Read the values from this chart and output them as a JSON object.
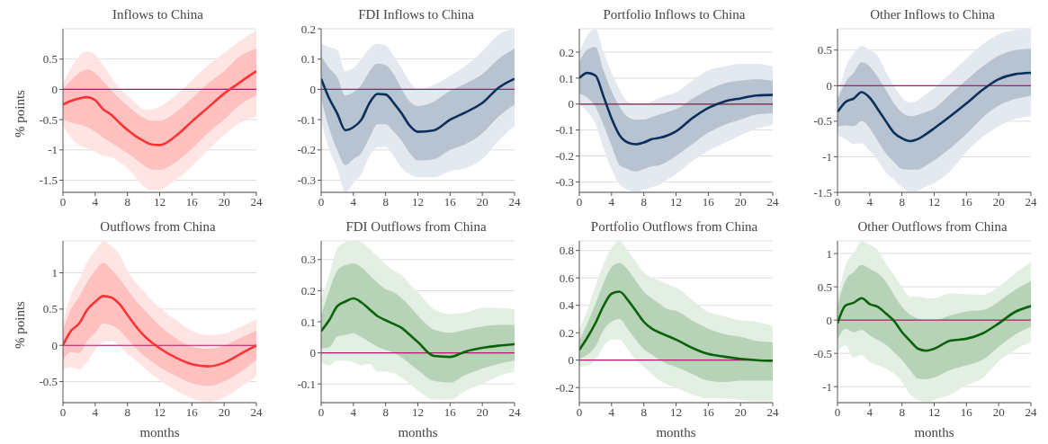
{
  "chart_data": [
    {
      "type": "line",
      "title": "Inflows to China",
      "ylabel": "% points",
      "x": [
        0,
        1,
        2,
        3,
        4,
        5,
        6,
        7,
        8,
        9,
        10,
        11,
        12,
        14,
        16,
        18,
        20,
        22,
        24
      ],
      "xlim": [
        0,
        24
      ],
      "xticks": [
        0,
        4,
        8,
        12,
        16,
        20,
        24
      ],
      "ylim": [
        -1.7,
        1
      ],
      "yticks": [
        -1.5,
        -1,
        -0.5,
        0,
        0.5
      ],
      "grid": "y",
      "legend": false,
      "marker": "none",
      "line_style": "solid",
      "ref_lines": [
        {
          "axis": "y",
          "value": 0,
          "color": "#b0166b"
        }
      ],
      "series": [
        {
          "color": "#ff3333",
          "values": [
            -0.25,
            -0.19,
            -0.15,
            -0.13,
            -0.18,
            -0.33,
            -0.42,
            -0.55,
            -0.67,
            -0.77,
            -0.85,
            -0.91,
            -0.92,
            -0.77,
            -0.53,
            -0.3,
            -0.07,
            0.12,
            0.3
          ],
          "lower": [
            -0.5,
            -0.55,
            -0.58,
            -0.62,
            -0.7,
            -0.8,
            -0.88,
            -0.97,
            -1.05,
            -1.15,
            -1.25,
            -1.32,
            -1.33,
            -1.2,
            -0.98,
            -0.72,
            -0.5,
            -0.25,
            -0.1
          ],
          "upper": [
            0,
            0.15,
            0.27,
            0.33,
            0.27,
            0.13,
            -0.02,
            -0.15,
            -0.27,
            -0.38,
            -0.47,
            -0.52,
            -0.52,
            -0.38,
            -0.15,
            0.1,
            0.3,
            0.55,
            0.67
          ]
        },
        {
          "color": "#ffe4e4",
          "values": [
            null,
            null,
            null,
            null,
            null,
            null,
            null,
            null,
            null,
            null,
            null,
            null,
            null,
            null,
            null,
            null,
            null,
            null,
            null
          ],
          "lower": [
            -0.6,
            -0.8,
            -0.92,
            -0.97,
            -1.03,
            -1.1,
            -1.12,
            -1.2,
            -1.3,
            -1.45,
            -1.6,
            -1.66,
            -1.65,
            -1.5,
            -1.27,
            -1,
            -0.75,
            -0.55,
            -0.45
          ],
          "upper": [
            0.1,
            0.35,
            0.55,
            0.62,
            0.57,
            0.4,
            0.2,
            0.02,
            -0.1,
            -0.22,
            -0.33,
            -0.33,
            -0.28,
            -0.1,
            0.15,
            0.4,
            0.6,
            0.8,
            0.97
          ]
        }
      ]
    },
    {
      "type": "line",
      "title": "FDI Inflows to China",
      "x": [
        0,
        1,
        2,
        3,
        4,
        5,
        6,
        7,
        8,
        9,
        10,
        11,
        12,
        14,
        16,
        18,
        20,
        22,
        24
      ],
      "xlim": [
        0,
        24
      ],
      "xticks": [
        0,
        4,
        8,
        12,
        16,
        20,
        24
      ],
      "ylim": [
        -0.34,
        0.2
      ],
      "yticks": [
        -0.3,
        -0.2,
        -0.1,
        0,
        0.1,
        0.2
      ],
      "grid": "y",
      "legend": false,
      "marker": "none",
      "line_style": "solid",
      "ref_lines": [
        {
          "axis": "y",
          "value": 0,
          "color": "#b0166b"
        }
      ],
      "series": [
        {
          "color": "#0b2f5c",
          "values": [
            0.035,
            -0.03,
            -0.08,
            -0.135,
            -0.125,
            -0.1,
            -0.045,
            -0.015,
            -0.017,
            -0.045,
            -0.08,
            -0.12,
            -0.14,
            -0.135,
            -0.1,
            -0.075,
            -0.045,
            0.005,
            0.035
          ],
          "lower": [
            -0.03,
            -0.13,
            -0.2,
            -0.25,
            -0.23,
            -0.21,
            -0.16,
            -0.115,
            -0.115,
            -0.14,
            -0.17,
            -0.21,
            -0.235,
            -0.23,
            -0.2,
            -0.18,
            -0.145,
            -0.09,
            -0.05
          ],
          "upper": [
            0.11,
            0.07,
            0.04,
            -0.02,
            -0.01,
            0.015,
            0.06,
            0.085,
            0.08,
            0.05,
            0,
            -0.04,
            -0.055,
            -0.04,
            -0.005,
            0.02,
            0.05,
            0.1,
            0.135
          ]
        },
        {
          "color": "#e3e9ee",
          "values": [
            null,
            null,
            null,
            null,
            null,
            null,
            null,
            null,
            null,
            null,
            null,
            null,
            null,
            null,
            null,
            null,
            null,
            null,
            null
          ],
          "lower": [
            -0.1,
            -0.2,
            -0.26,
            -0.34,
            -0.31,
            -0.28,
            -0.22,
            -0.19,
            -0.19,
            -0.22,
            -0.26,
            -0.28,
            -0.29,
            -0.29,
            -0.27,
            -0.26,
            -0.23,
            -0.17,
            -0.12
          ],
          "upper": [
            0.15,
            0.14,
            0.13,
            0.06,
            0.07,
            0.1,
            0.135,
            0.15,
            0.145,
            0.11,
            0.07,
            0.025,
            0,
            0.015,
            0.045,
            0.08,
            0.125,
            0.18,
            0.2
          ]
        }
      ]
    },
    {
      "type": "line",
      "title": "Portfolio Inflows to China",
      "x": [
        0,
        1,
        2,
        3,
        4,
        5,
        6,
        7,
        8,
        9,
        10,
        11,
        12,
        14,
        16,
        18,
        20,
        22,
        24
      ],
      "xlim": [
        0,
        24
      ],
      "xticks": [
        0,
        4,
        8,
        12,
        16,
        20,
        24
      ],
      "ylim": [
        -0.34,
        0.29
      ],
      "yticks": [
        -0.3,
        -0.2,
        -0.1,
        0,
        0.1,
        0.2
      ],
      "grid": "y",
      "legend": false,
      "marker": "none",
      "line_style": "solid",
      "ref_lines": [
        {
          "axis": "y",
          "value": 0,
          "color": "#7a1f3d"
        }
      ],
      "series": [
        {
          "color": "#0b2f5c",
          "values": [
            0.1,
            0.12,
            0.11,
            0.03,
            -0.055,
            -0.12,
            -0.148,
            -0.155,
            -0.148,
            -0.135,
            -0.13,
            -0.12,
            -0.105,
            -0.055,
            -0.015,
            0.01,
            0.022,
            0.033,
            0.035
          ],
          "lower": [
            0.04,
            0.025,
            -0.01,
            -0.08,
            -0.16,
            -0.235,
            -0.25,
            -0.26,
            -0.25,
            -0.24,
            -0.235,
            -0.22,
            -0.2,
            -0.155,
            -0.11,
            -0.08,
            -0.06,
            -0.04,
            -0.035
          ],
          "upper": [
            0.16,
            0.21,
            0.22,
            0.13,
            0.05,
            -0.01,
            -0.05,
            -0.06,
            -0.06,
            -0.05,
            -0.04,
            -0.03,
            -0.02,
            0.02,
            0.055,
            0.08,
            0.09,
            0.095,
            0.09
          ]
        },
        {
          "color": "#e3e9ee",
          "values": [
            null,
            null,
            null,
            null,
            null,
            null,
            null,
            null,
            null,
            null,
            null,
            null,
            null,
            null,
            null,
            null,
            null,
            null,
            null
          ],
          "lower": [
            0,
            -0.03,
            -0.075,
            -0.17,
            -0.25,
            -0.31,
            -0.33,
            -0.34,
            -0.33,
            -0.32,
            -0.31,
            -0.29,
            -0.27,
            -0.22,
            -0.18,
            -0.15,
            -0.12,
            -0.095,
            -0.08
          ],
          "upper": [
            0.2,
            0.265,
            0.29,
            0.2,
            0.12,
            0.055,
            0.01,
            0,
            0,
            0.01,
            0.025,
            0.035,
            0.045,
            0.09,
            0.13,
            0.145,
            0.155,
            0.155,
            0.145
          ]
        }
      ]
    },
    {
      "type": "line",
      "title": "Other Inflows to China",
      "x": [
        0,
        1,
        2,
        3,
        4,
        5,
        6,
        7,
        8,
        9,
        10,
        11,
        12,
        14,
        16,
        18,
        20,
        22,
        24
      ],
      "xlim": [
        0,
        24
      ],
      "xticks": [
        0,
        4,
        8,
        12,
        16,
        20,
        24
      ],
      "ylim": [
        -1.5,
        0.8
      ],
      "yticks": [
        -1.5,
        -1,
        -0.5,
        0,
        0.5
      ],
      "grid": "y",
      "legend": false,
      "marker": "none",
      "line_style": "solid",
      "ref_lines": [
        {
          "axis": "y",
          "value": 0,
          "color": "#b0166b"
        }
      ],
      "series": [
        {
          "color": "#0b2f5c",
          "values": [
            -0.37,
            -0.23,
            -0.18,
            -0.09,
            -0.17,
            -0.33,
            -0.5,
            -0.66,
            -0.74,
            -0.78,
            -0.75,
            -0.68,
            -0.6,
            -0.43,
            -0.25,
            -0.06,
            0.09,
            0.16,
            0.18
          ],
          "lower": [
            -0.58,
            -0.56,
            -0.57,
            -0.5,
            -0.6,
            -0.78,
            -0.95,
            -1.07,
            -1.17,
            -1.18,
            -1.18,
            -1.12,
            -1.05,
            -0.88,
            -0.68,
            -0.45,
            -0.28,
            -0.19,
            -0.14
          ],
          "upper": [
            -0.2,
            0.05,
            0.18,
            0.33,
            0.27,
            0.12,
            -0.06,
            -0.25,
            -0.38,
            -0.43,
            -0.41,
            -0.37,
            -0.32,
            -0.12,
            0.08,
            0.27,
            0.42,
            0.5,
            0.52
          ]
        },
        {
          "color": "#e3e9ee",
          "values": [
            null,
            null,
            null,
            null,
            null,
            null,
            null,
            null,
            null,
            null,
            null,
            null,
            null,
            null,
            null,
            null,
            null,
            null,
            null
          ],
          "lower": [
            -0.7,
            -0.75,
            -0.82,
            -0.81,
            -0.92,
            -1.05,
            -1.22,
            -1.32,
            -1.43,
            -1.49,
            -1.47,
            -1.42,
            -1.37,
            -1.2,
            -0.93,
            -0.72,
            -0.57,
            -0.47,
            -0.43
          ],
          "upper": [
            -0.15,
            0.25,
            0.45,
            0.56,
            0.5,
            0.42,
            0.2,
            0,
            -0.17,
            -0.24,
            -0.2,
            -0.12,
            -0.03,
            0.17,
            0.38,
            0.58,
            0.72,
            0.78,
            0.8
          ]
        }
      ]
    },
    {
      "type": "line",
      "title": "Outflows from China",
      "ylabel": "% points",
      "xlabel": "months",
      "x": [
        0,
        1,
        2,
        3,
        4,
        5,
        6,
        7,
        8,
        9,
        10,
        11,
        12,
        14,
        16,
        18,
        20,
        22,
        24
      ],
      "xlim": [
        0,
        24
      ],
      "xticks": [
        0,
        4,
        8,
        12,
        16,
        20,
        24
      ],
      "ylim": [
        -0.79,
        1.44
      ],
      "yticks": [
        -0.5,
        0,
        0.5,
        1
      ],
      "grid": "y",
      "legend": false,
      "marker": "none",
      "line_style": "solid",
      "ref_lines": [
        {
          "axis": "y",
          "value": 0,
          "color": "#b0166b"
        }
      ],
      "series": [
        {
          "color": "#ff3333",
          "values": [
            0,
            0.2,
            0.3,
            0.49,
            0.6,
            0.68,
            0.66,
            0.57,
            0.42,
            0.27,
            0.14,
            0.04,
            -0.04,
            -0.17,
            -0.26,
            -0.29,
            -0.24,
            -0.12,
            0
          ],
          "lower": [
            -0.2,
            -0.09,
            -0.11,
            0.06,
            0.17,
            0.3,
            0.28,
            0.21,
            0.09,
            -0.03,
            -0.14,
            -0.22,
            -0.3,
            -0.42,
            -0.52,
            -0.56,
            -0.5,
            -0.37,
            -0.2
          ],
          "upper": [
            0.2,
            0.5,
            0.67,
            0.87,
            1.03,
            1.14,
            1.05,
            0.92,
            0.77,
            0.62,
            0.5,
            0.38,
            0.27,
            0.1,
            -0.02,
            -0.05,
            0,
            0.1,
            0.2
          ]
        },
        {
          "color": "#ffe4e4",
          "values": [
            null,
            null,
            null,
            null,
            null,
            null,
            null,
            null,
            null,
            null,
            null,
            null,
            null,
            null,
            null,
            null,
            null,
            null,
            null
          ],
          "lower": [
            -0.32,
            -0.3,
            -0.33,
            -0.23,
            -0.06,
            0.04,
            0.06,
            0,
            -0.12,
            -0.2,
            -0.3,
            -0.4,
            -0.48,
            -0.62,
            -0.73,
            -0.78,
            -0.72,
            -0.58,
            -0.43
          ],
          "upper": [
            0.3,
            0.7,
            0.9,
            1.15,
            1.3,
            1.43,
            1.37,
            1.25,
            1.03,
            0.87,
            0.75,
            0.62,
            0.52,
            0.35,
            0.2,
            0.14,
            0.16,
            0.25,
            0.36
          ]
        }
      ]
    },
    {
      "type": "line",
      "title": "FDI Outflows from China",
      "xlabel": "months",
      "x": [
        0,
        1,
        2,
        3,
        4,
        5,
        6,
        7,
        8,
        9,
        10,
        11,
        12,
        14,
        16,
        18,
        20,
        22,
        24
      ],
      "xlim": [
        0,
        24
      ],
      "xticks": [
        0,
        4,
        8,
        12,
        16,
        20,
        24
      ],
      "ylim": [
        -0.16,
        0.36
      ],
      "yticks": [
        -0.1,
        0,
        0.1,
        0.2,
        0.3
      ],
      "grid": "y",
      "legend": false,
      "marker": "none",
      "line_style": "solid",
      "ref_lines": [
        {
          "axis": "y",
          "value": 0,
          "color": "#b0166b"
        }
      ],
      "series": [
        {
          "color": "#0a620a",
          "values": [
            0.07,
            0.105,
            0.15,
            0.165,
            0.175,
            0.162,
            0.14,
            0.118,
            0.105,
            0.093,
            0.08,
            0.058,
            0.035,
            -0.01,
            -0.013,
            0.005,
            0.016,
            0.023,
            0.028
          ],
          "lower": [
            0.015,
            0.018,
            0.052,
            0.058,
            0.063,
            0.05,
            0.035,
            0.02,
            0.01,
            0,
            -0.015,
            -0.035,
            -0.055,
            -0.09,
            -0.095,
            -0.07,
            -0.05,
            -0.035,
            -0.025
          ],
          "upper": [
            0.12,
            0.2,
            0.265,
            0.282,
            0.287,
            0.275,
            0.25,
            0.225,
            0.205,
            0.195,
            0.175,
            0.15,
            0.12,
            0.075,
            0.065,
            0.075,
            0.085,
            0.09,
            0.09
          ]
        },
        {
          "color": "#e3efe3",
          "values": [
            null,
            null,
            null,
            null,
            null,
            null,
            null,
            null,
            null,
            null,
            null,
            null,
            null,
            null,
            null,
            null,
            null,
            null,
            null
          ],
          "lower": [
            -0.03,
            -0.04,
            -0.025,
            -0.025,
            -0.03,
            -0.04,
            -0.035,
            -0.06,
            -0.06,
            -0.065,
            -0.08,
            -0.1,
            -0.12,
            -0.15,
            -0.15,
            -0.12,
            -0.1,
            -0.075,
            -0.06
          ],
          "upper": [
            0.17,
            0.25,
            0.335,
            0.355,
            0.36,
            0.355,
            0.335,
            0.31,
            0.285,
            0.265,
            0.25,
            0.22,
            0.195,
            0.14,
            0.125,
            0.13,
            0.145,
            0.145,
            0.14
          ]
        }
      ]
    },
    {
      "type": "line",
      "title": "Portfolio Outflows from China",
      "xlabel": "months",
      "x": [
        0,
        1,
        2,
        3,
        4,
        5,
        6,
        7,
        8,
        9,
        10,
        11,
        12,
        14,
        16,
        18,
        20,
        22,
        24
      ],
      "xlim": [
        0,
        24
      ],
      "xticks": [
        0,
        4,
        8,
        12,
        16,
        20,
        24
      ],
      "ylim": [
        -0.31,
        0.87
      ],
      "yticks": [
        -0.2,
        0,
        0.2,
        0.4,
        0.6,
        0.8
      ],
      "grid": "y",
      "legend": false,
      "marker": "none",
      "line_style": "solid",
      "ref_lines": [
        {
          "axis": "y",
          "value": 0,
          "color": "#b0166b"
        }
      ],
      "series": [
        {
          "color": "#0a620a",
          "values": [
            0.075,
            0.165,
            0.27,
            0.395,
            0.485,
            0.5,
            0.44,
            0.36,
            0.28,
            0.23,
            0.2,
            0.175,
            0.15,
            0.09,
            0.045,
            0.025,
            0.01,
            0,
            -0.005
          ],
          "lower": [
            0.01,
            0.04,
            0.1,
            0.22,
            0.28,
            0.3,
            0.23,
            0.15,
            0.08,
            0.04,
            0,
            -0.03,
            -0.05,
            -0.1,
            -0.15,
            -0.16,
            -0.15,
            -0.15,
            -0.15
          ],
          "upper": [
            0.14,
            0.27,
            0.41,
            0.56,
            0.68,
            0.71,
            0.66,
            0.58,
            0.5,
            0.45,
            0.41,
            0.37,
            0.36,
            0.29,
            0.23,
            0.19,
            0.17,
            0.14,
            0.13
          ]
        },
        {
          "color": "#e3efe3",
          "values": [
            null,
            null,
            null,
            null,
            null,
            null,
            null,
            null,
            null,
            null,
            null,
            null,
            null,
            null,
            null,
            null,
            null,
            null,
            null
          ],
          "lower": [
            -0.05,
            -0.04,
            0,
            0.1,
            0.15,
            0.15,
            0.08,
            0,
            -0.05,
            -0.1,
            -0.15,
            -0.18,
            -0.2,
            -0.25,
            -0.28,
            -0.28,
            -0.29,
            -0.3,
            -0.3
          ],
          "upper": [
            0.22,
            0.37,
            0.54,
            0.7,
            0.82,
            0.87,
            0.8,
            0.72,
            0.64,
            0.6,
            0.58,
            0.55,
            0.53,
            0.44,
            0.35,
            0.32,
            0.29,
            0.28,
            0.25
          ]
        }
      ]
    },
    {
      "type": "line",
      "title": "Other Outflows from China",
      "xlabel": "months",
      "x": [
        0,
        1,
        2,
        3,
        4,
        5,
        6,
        7,
        8,
        9,
        10,
        11,
        12,
        14,
        16,
        18,
        20,
        22,
        24
      ],
      "xlim": [
        0,
        24
      ],
      "xticks": [
        0,
        4,
        8,
        12,
        16,
        20,
        24
      ],
      "ylim": [
        -1.24,
        1.19
      ],
      "yticks": [
        -1,
        -0.5,
        0,
        0.5,
        1
      ],
      "grid": "y",
      "legend": false,
      "marker": "none",
      "line_style": "solid",
      "ref_lines": [
        {
          "axis": "y",
          "value": 0,
          "color": "#b0166b"
        }
      ],
      "series": [
        {
          "color": "#0a620a",
          "values": [
            -0.05,
            0.22,
            0.26,
            0.33,
            0.24,
            0.2,
            0.1,
            -0.01,
            -0.18,
            -0.31,
            -0.43,
            -0.46,
            -0.43,
            -0.31,
            -0.28,
            -0.2,
            -0.05,
            0.12,
            0.21
          ],
          "lower": [
            -0.3,
            -0.13,
            -0.18,
            -0.15,
            -0.23,
            -0.3,
            -0.37,
            -0.48,
            -0.6,
            -0.75,
            -0.88,
            -0.89,
            -0.86,
            -0.75,
            -0.68,
            -0.6,
            -0.4,
            -0.22,
            -0.1
          ],
          "upper": [
            0.2,
            0.6,
            0.72,
            0.83,
            0.77,
            0.7,
            0.58,
            0.38,
            0.2,
            0.08,
            0.02,
            0,
            0,
            0.07,
            0.13,
            0.15,
            0.28,
            0.45,
            0.59
          ]
        },
        {
          "color": "#e3efe3",
          "values": [
            null,
            null,
            null,
            null,
            null,
            null,
            null,
            null,
            null,
            null,
            null,
            null,
            null,
            null,
            null,
            null,
            null,
            null,
            null
          ],
          "lower": [
            -0.47,
            -0.38,
            -0.56,
            -0.52,
            -0.63,
            -0.68,
            -0.73,
            -0.8,
            -0.93,
            -1.12,
            -1.2,
            -1.24,
            -1.2,
            -1.12,
            -0.98,
            -0.87,
            -0.62,
            -0.45,
            -0.33
          ],
          "upper": [
            0.3,
            0.83,
            1,
            1.18,
            1.13,
            1.05,
            0.85,
            0.68,
            0.5,
            0.35,
            0.35,
            0.33,
            0.33,
            0.4,
            0.39,
            0.38,
            0.5,
            0.7,
            0.87
          ]
        }
      ]
    }
  ]
}
